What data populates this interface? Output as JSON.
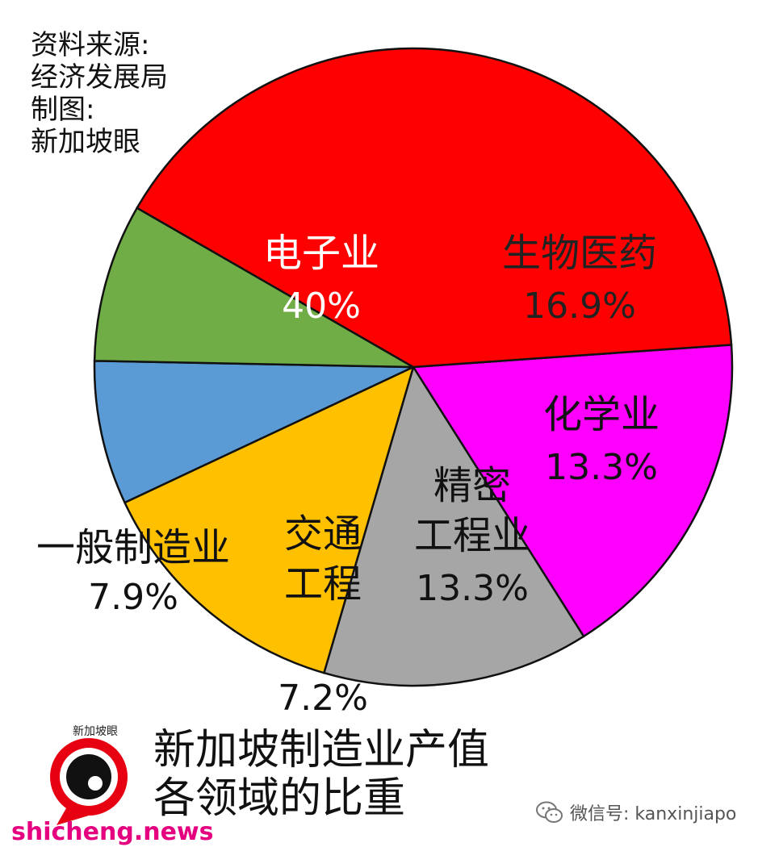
{
  "source_lines": [
    "资料来源:",
    "经济发展局",
    "制图:",
    "新加坡眼"
  ],
  "title_lines": [
    "新加坡制造业产值",
    "各领域的比重"
  ],
  "logo": {
    "text": "新加坡眼",
    "icon": "eye-logo-icon"
  },
  "wechat": {
    "text": "微信号: kanxinjiapo",
    "icon": "wechat-icon"
  },
  "site": "shicheng.news",
  "chart_data": {
    "type": "pie",
    "title": "新加坡制造业产值 各领域的比重",
    "slices": [
      {
        "name": "生物医药",
        "label_lines": [
          "生物医药"
        ],
        "value": 16.9,
        "value_label": "16.9%",
        "color": "#ff00ff",
        "text_color": "#222222"
      },
      {
        "name": "化学业",
        "label_lines": [
          "化学业"
        ],
        "value": 13.3,
        "value_label": "13.3%",
        "color": "#a6a6a6",
        "text_color": "#111111"
      },
      {
        "name": "精密工程业",
        "label_lines": [
          "精密",
          "工程业"
        ],
        "value": 13.3,
        "value_label": "13.3%",
        "color": "#ffc000",
        "text_color": "#111111"
      },
      {
        "name": "交通工程",
        "label_lines": [
          "交通",
          "工程"
        ],
        "value": 7.2,
        "value_label": "7.2%",
        "color": "#5b9bd5",
        "text_color": "#111111"
      },
      {
        "name": "一般制造业",
        "label_lines": [
          "一般制造业"
        ],
        "value": 7.9,
        "value_label": "7.9%",
        "color": "#70ad47",
        "text_color": "#111111"
      },
      {
        "name": "电子业",
        "label_lines": [
          "电子业"
        ],
        "value": 40,
        "value_label": "40%",
        "color": "#ff0000",
        "text_color": "#ffffff"
      }
    ],
    "start_angle_deg": 86,
    "direction": "clockwise"
  }
}
